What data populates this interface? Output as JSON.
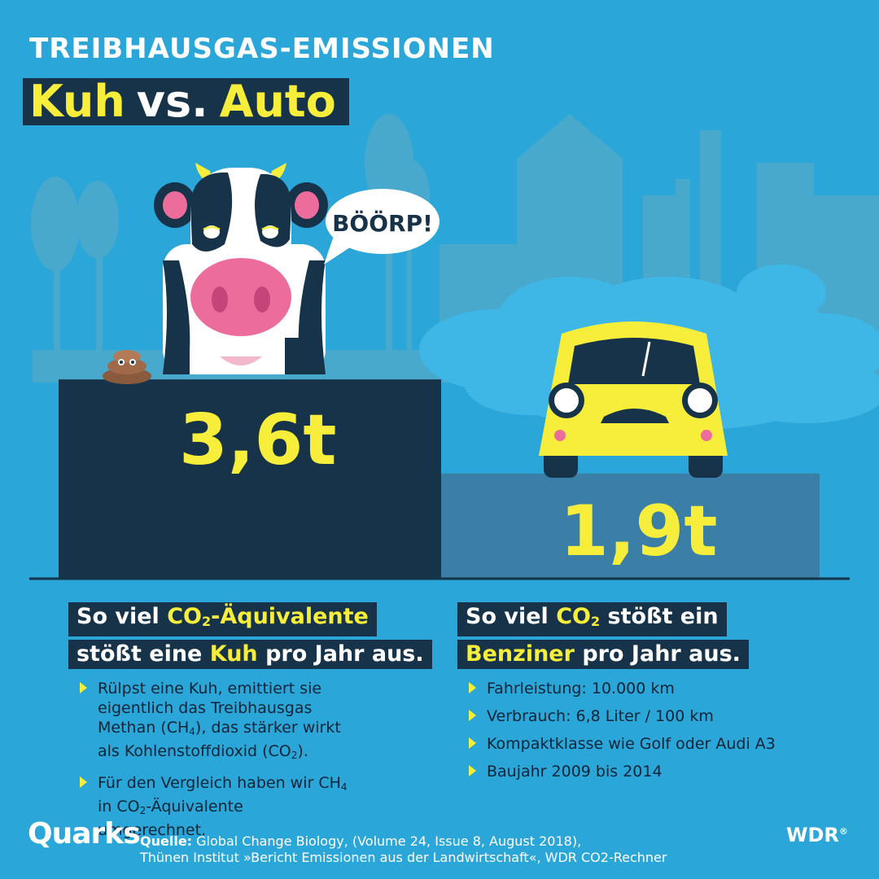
{
  "header": {
    "pre_title": "TREIBHAUSGAS-EMISSIONEN",
    "title_part1": "Kuh",
    "title_part2": "vs.",
    "title_part3": "Auto"
  },
  "speech_bubble": "BÖÖRP!",
  "chart_data": {
    "type": "bar",
    "categories": [
      "Kuh",
      "Auto"
    ],
    "values": [
      3.6,
      1.9
    ],
    "labels": [
      "3,6t",
      "1,9t"
    ]
  },
  "cow_column": {
    "headline_line1_a": "So viel ",
    "headline_line1_b": "CO",
    "headline_line1_sub": "2",
    "headline_line1_c": "-Äquivalente",
    "headline_line2_a": "stößt eine ",
    "headline_line2_b": "Kuh",
    "headline_line2_c": " pro Jahr aus.",
    "bullet1_a": "Rülpst eine Kuh, emittiert sie eigentlich das Treibhausgas Methan (CH",
    "bullet1_sub1": "4",
    "bullet1_b": "), das stärker wirkt als Kohlenstoffdioxid (CO",
    "bullet1_sub2": "2",
    "bullet1_c": ").",
    "bullet2_a": "Für den Vergleich haben wir CH",
    "bullet2_sub1": "4",
    "bullet2_b": " in CO",
    "bullet2_sub2": "2",
    "bullet2_c": "-Äquivalente umgerechnet."
  },
  "car_column": {
    "headline_line1_a": "So viel ",
    "headline_line1_b": "CO",
    "headline_line1_sub": "2",
    "headline_line1_c": " stößt ein",
    "headline_line2_a": "Benziner",
    "headline_line2_b": " pro Jahr aus.",
    "bullets": [
      "Fahrleistung: 10.000 km",
      "Verbrauch: 6,8 Liter / 100 km",
      "Kompaktklasse wie Golf oder Audi A3",
      "Baujahr 2009 bis 2014"
    ]
  },
  "footer": {
    "brand": "Quarks",
    "source_label": "Quelle:",
    "source_line1": " Global Change Biology,  (Volume 24, Issue 8, August 2018),",
    "source_line2": "Thünen Institut »Bericht Emissionen aus der Landwirtschaft«, WDR CO2-Rechner",
    "wdr": "WDR",
    "wdr_mark": "®"
  },
  "colors": {
    "background": "#2aa6d9",
    "navy": "#173349",
    "yellow": "#f6ee3a",
    "bar_car": "#3b7fa6",
    "cow_pink": "#ec6d9c"
  }
}
